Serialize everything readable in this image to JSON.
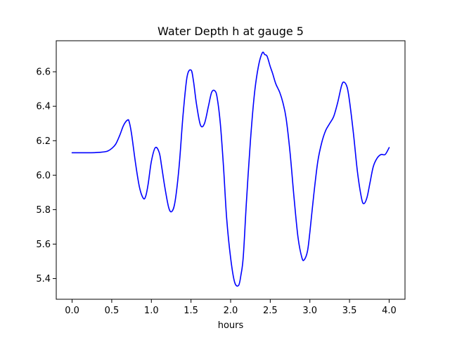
{
  "chart_data": {
    "type": "line",
    "title": "Water Depth h at gauge 5",
    "xlabel": "hours",
    "ylabel": "",
    "xlim": [
      -0.2,
      4.2
    ],
    "ylim": [
      5.28,
      6.78
    ],
    "xticks": [
      0.0,
      0.5,
      1.0,
      1.5,
      2.0,
      2.5,
      3.0,
      3.5,
      4.0
    ],
    "xtick_labels": [
      "0.0",
      "0.5",
      "1.0",
      "1.5",
      "2.0",
      "2.5",
      "3.0",
      "3.5",
      "4.0"
    ],
    "yticks": [
      5.4,
      5.6,
      5.8,
      6.0,
      6.2,
      6.4,
      6.6
    ],
    "ytick_labels": [
      "5.4",
      "5.6",
      "5.8",
      "6.0",
      "6.2",
      "6.4",
      "6.6"
    ],
    "grid": false,
    "series": [
      {
        "color": "#0000ff",
        "x": [
          0.0,
          0.1,
          0.2,
          0.3,
          0.4,
          0.45,
          0.5,
          0.55,
          0.6,
          0.65,
          0.7,
          0.72,
          0.75,
          0.8,
          0.85,
          0.9,
          0.93,
          0.96,
          1.0,
          1.05,
          1.1,
          1.13,
          1.17,
          1.22,
          1.26,
          1.3,
          1.35,
          1.4,
          1.45,
          1.5,
          1.53,
          1.57,
          1.62,
          1.67,
          1.72,
          1.76,
          1.8,
          1.83,
          1.87,
          1.91,
          1.95,
          2.0,
          2.05,
          2.1,
          2.13,
          2.16,
          2.2,
          2.25,
          2.3,
          2.35,
          2.4,
          2.43,
          2.46,
          2.5,
          2.53,
          2.57,
          2.62,
          2.66,
          2.7,
          2.75,
          2.8,
          2.85,
          2.9,
          2.93,
          2.97,
          3.0,
          3.05,
          3.1,
          3.15,
          3.2,
          3.25,
          3.3,
          3.35,
          3.4,
          3.43,
          3.47,
          3.5,
          3.55,
          3.6,
          3.65,
          3.68,
          3.72,
          3.76,
          3.8,
          3.85,
          3.9,
          3.95,
          4.0
        ],
        "y": [
          6.13,
          6.13,
          6.13,
          6.131,
          6.135,
          6.14,
          6.155,
          6.18,
          6.23,
          6.29,
          6.32,
          6.31,
          6.24,
          6.07,
          5.93,
          5.865,
          5.88,
          5.95,
          6.08,
          6.16,
          6.13,
          6.05,
          5.93,
          5.81,
          5.79,
          5.85,
          6.05,
          6.35,
          6.57,
          6.61,
          6.55,
          6.41,
          6.29,
          6.3,
          6.4,
          6.48,
          6.49,
          6.45,
          6.3,
          6.05,
          5.75,
          5.52,
          5.38,
          5.36,
          5.42,
          5.53,
          5.85,
          6.2,
          6.47,
          6.63,
          6.71,
          6.7,
          6.69,
          6.63,
          6.59,
          6.53,
          6.48,
          6.42,
          6.33,
          6.13,
          5.87,
          5.64,
          5.52,
          5.51,
          5.56,
          5.67,
          5.89,
          6.08,
          6.19,
          6.26,
          6.3,
          6.34,
          6.42,
          6.52,
          6.54,
          6.51,
          6.43,
          6.24,
          6.02,
          5.87,
          5.835,
          5.87,
          5.96,
          6.05,
          6.1,
          6.12,
          6.12,
          6.16
        ]
      }
    ]
  }
}
